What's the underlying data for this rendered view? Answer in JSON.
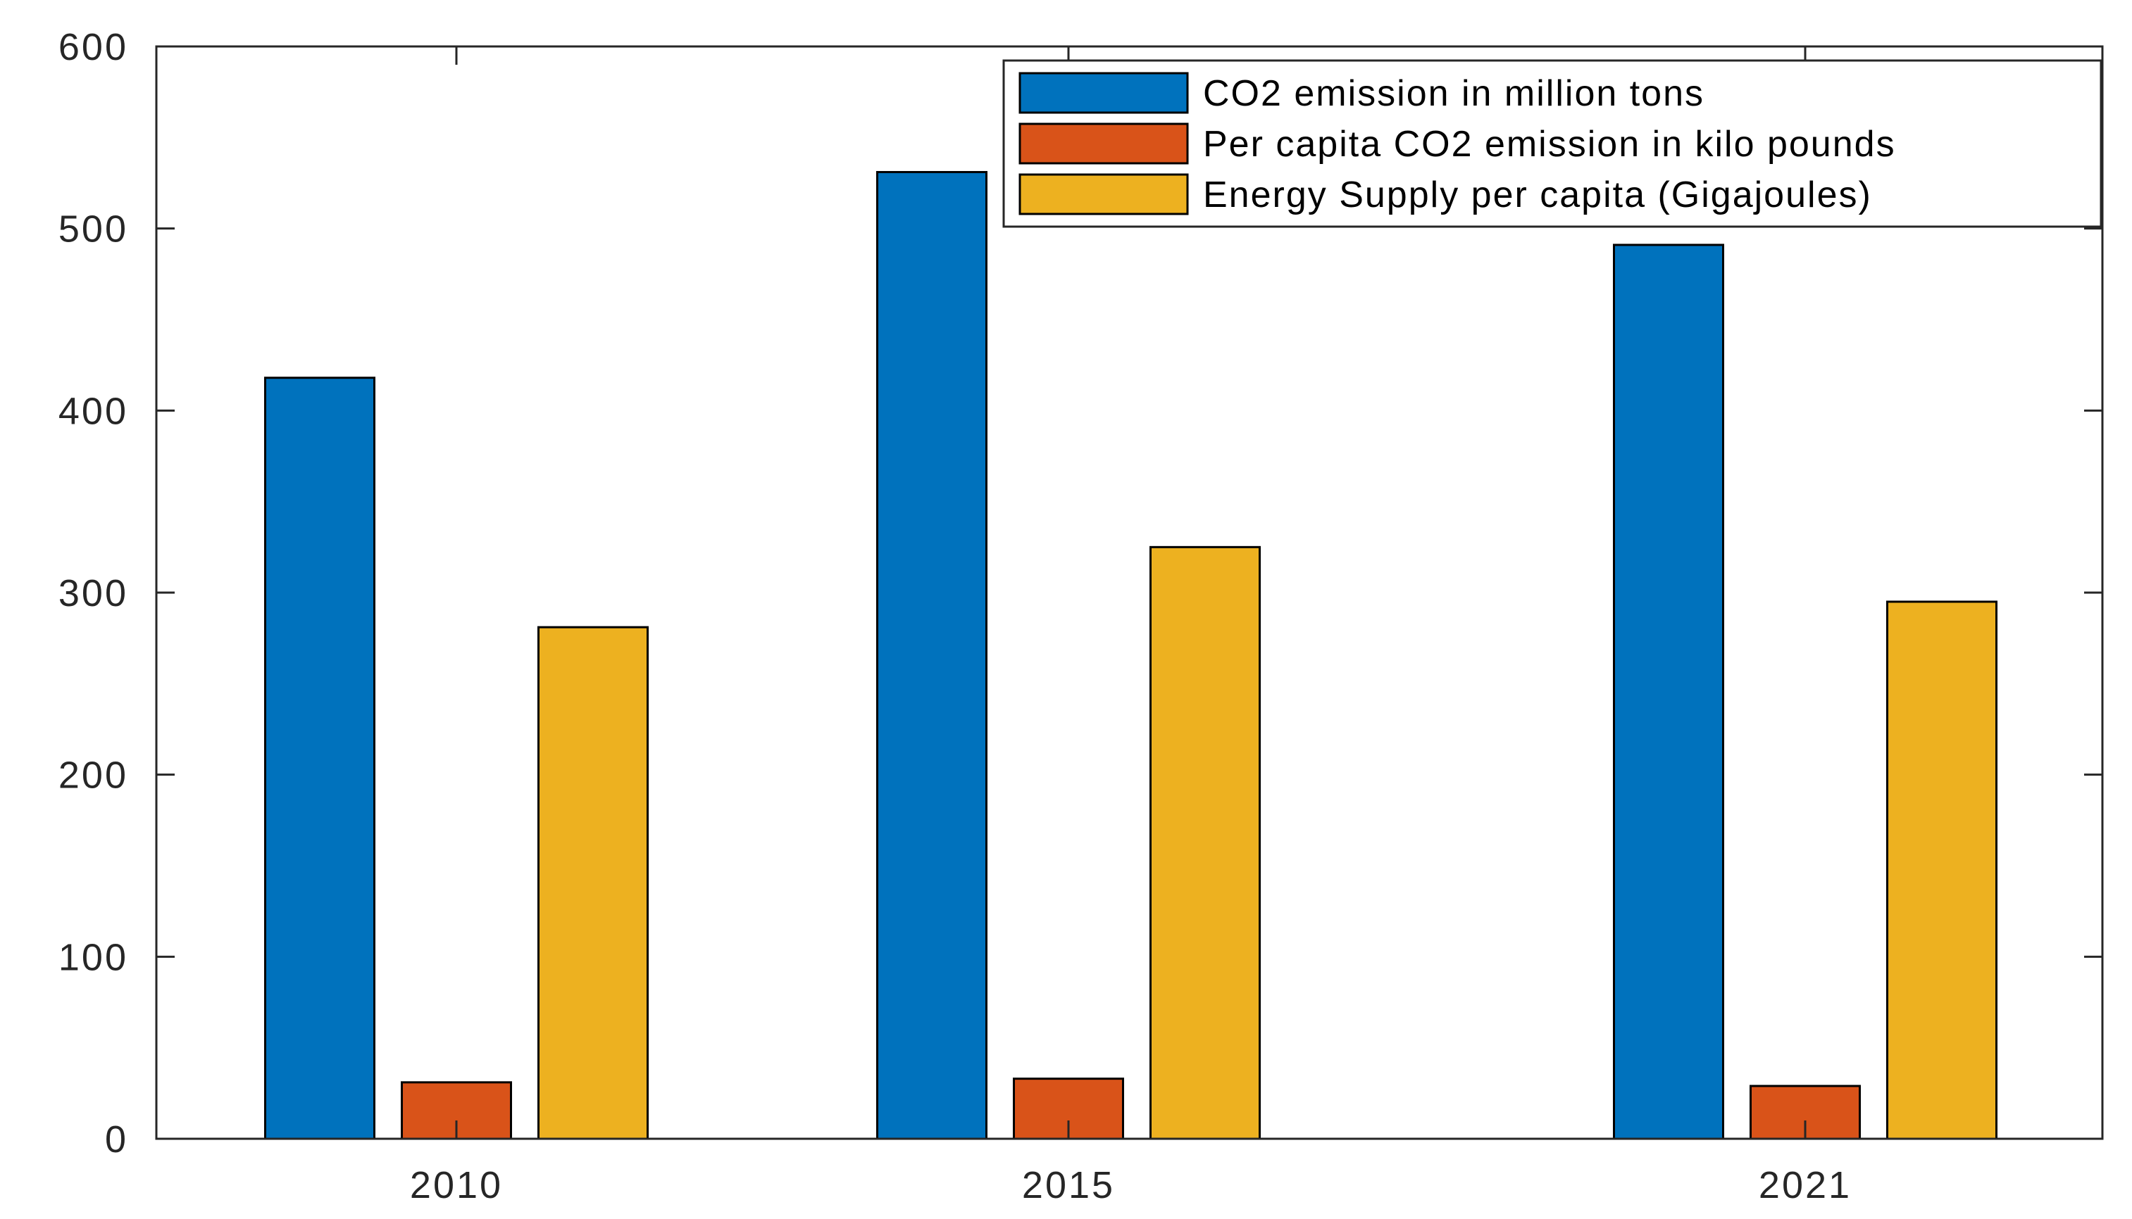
{
  "chart_data": {
    "type": "bar",
    "title": "",
    "xlabel": "",
    "ylabel": "",
    "categories": [
      "2010",
      "2015",
      "2021"
    ],
    "ylim": [
      0,
      600
    ],
    "yticks": [
      "0",
      "100",
      "200",
      "300",
      "400",
      "500",
      "600"
    ],
    "legend_position": "top-right",
    "grid": false,
    "series": [
      {
        "name": "CO2 emission in million tons",
        "color": "#0072BD",
        "values": [
          418,
          531,
          491
        ]
      },
      {
        "name": "Per capita CO2 emission in kilo pounds",
        "color": "#D95319",
        "values": [
          31,
          33,
          29
        ]
      },
      {
        "name": "Energy Supply per capita (Gigajoules)",
        "color": "#EDB120",
        "values": [
          281,
          325,
          295
        ]
      }
    ]
  }
}
